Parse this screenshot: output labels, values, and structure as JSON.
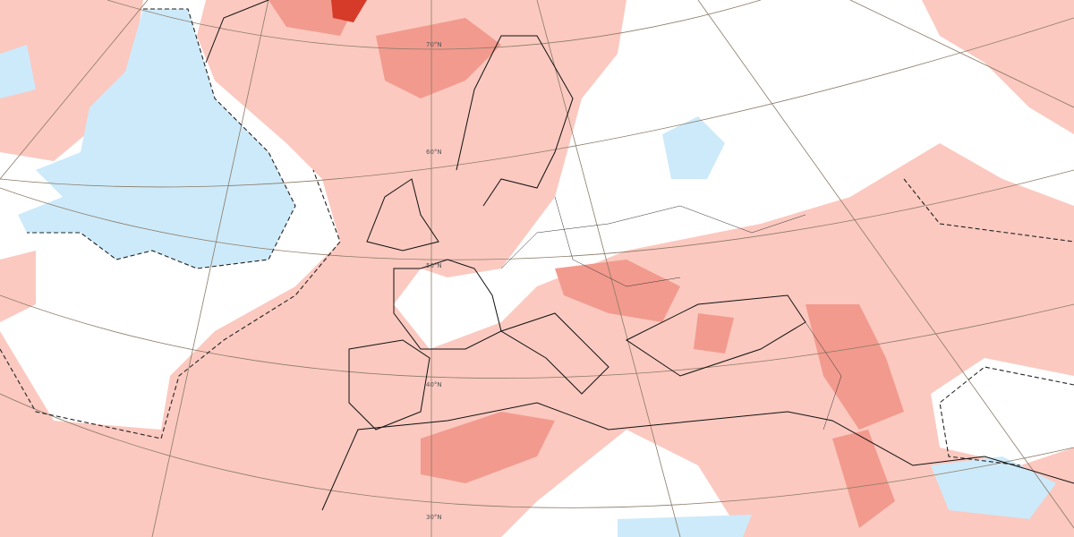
{
  "map": {
    "latitude_labels": [
      "70°N",
      "60°N",
      "50°N",
      "40°N",
      "30°N"
    ]
  }
}
